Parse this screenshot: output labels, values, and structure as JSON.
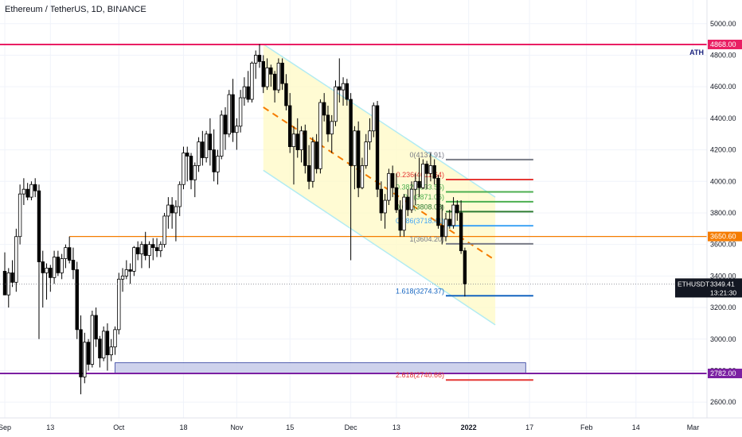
{
  "header": {
    "title": "Ethereum / TetherUS, 1D, BINANCE"
  },
  "colors": {
    "up": "#ffffff",
    "down": "#000000",
    "wick": "#000000",
    "ath": "#e91e63",
    "support": "#7b1fa2",
    "orange": "#f57c00",
    "channel_fill": "#fff9c4",
    "channel_line": "#b2ebf2",
    "zone": "#c5cae9",
    "zone_border": "#303f9f",
    "fib_0": "#787b86",
    "fib_236": "#e53935",
    "fib_382": "#4caf50",
    "fib_5": "#4caf50",
    "fib_618": "#2e7d32",
    "fib_786": "#42a5f5",
    "fib_1": "#787b86",
    "fib_1618": "#1565c0",
    "fib_2618": "#e53935"
  },
  "chart_data": {
    "type": "candlestick",
    "symbol": "ETHUSDT",
    "ylim": [
      2500,
      5150
    ],
    "y_ticks": [
      "2600.00",
      "2800.00",
      "3000.00",
      "3200.00",
      "3400.00",
      "3600.00",
      "3800.00",
      "4000.00",
      "4200.00",
      "4400.00",
      "4600.00",
      "4800.00",
      "5000.00"
    ],
    "x_ticks": [
      {
        "label": "Sep",
        "day": 0
      },
      {
        "label": "13",
        "day": 12
      },
      {
        "label": "Oct",
        "day": 30
      },
      {
        "label": "18",
        "day": 47
      },
      {
        "label": "Nov",
        "day": 61
      },
      {
        "label": "15",
        "day": 75
      },
      {
        "label": "Dec",
        "day": 91
      },
      {
        "label": "13",
        "day": 103
      },
      {
        "label": "2022",
        "day": 122
      },
      {
        "label": "17",
        "day": 138
      },
      {
        "label": "Feb",
        "day": 153
      },
      {
        "label": "14",
        "day": 166
      },
      {
        "label": "Mar",
        "day": 181
      }
    ],
    "x_range_days": [
      0,
      183
    ],
    "candles": [
      [
        3430,
        3550,
        3300,
        3280
      ],
      [
        3280,
        3450,
        3200,
        3420
      ],
      [
        3420,
        3500,
        3330,
        3360
      ],
      [
        3360,
        3700,
        3300,
        3650
      ],
      [
        3650,
        3980,
        3600,
        3920
      ],
      [
        3920,
        4020,
        3850,
        3950
      ],
      [
        3950,
        3990,
        3880,
        3900
      ],
      [
        3900,
        4000,
        3880,
        3980
      ],
      [
        3980,
        4020,
        3900,
        3940
      ],
      [
        3940,
        3980,
        3000,
        3490
      ],
      [
        3490,
        3560,
        3200,
        3420
      ],
      [
        3420,
        3480,
        3250,
        3450
      ],
      [
        3450,
        3470,
        3300,
        3390
      ],
      [
        3390,
        3560,
        3350,
        3520
      ],
      [
        3520,
        3560,
        3400,
        3420
      ],
      [
        3420,
        3540,
        3380,
        3510
      ],
      [
        3510,
        3600,
        3450,
        3580
      ],
      [
        3580,
        3650,
        3480,
        3500
      ],
      [
        3500,
        3580,
        3380,
        3440
      ],
      [
        3440,
        3490,
        3000,
        3060
      ],
      [
        3060,
        3150,
        2650,
        2760
      ],
      [
        2760,
        3040,
        2720,
        2980
      ],
      [
        2980,
        3000,
        2800,
        2840
      ],
      [
        2840,
        3180,
        2820,
        3150
      ],
      [
        3150,
        3200,
        2950,
        3000
      ],
      [
        3000,
        3020,
        2820,
        2880
      ],
      [
        2880,
        3080,
        2860,
        3050
      ],
      [
        3050,
        3100,
        2800,
        2900
      ],
      [
        2900,
        3000,
        2860,
        2950
      ],
      [
        2950,
        3080,
        2900,
        3060
      ],
      [
        3060,
        3420,
        3030,
        3380
      ],
      [
        3380,
        3450,
        3300,
        3400
      ],
      [
        3400,
        3500,
        3380,
        3440
      ],
      [
        3440,
        3480,
        3350,
        3430
      ],
      [
        3430,
        3590,
        3400,
        3580
      ],
      [
        3580,
        3620,
        3500,
        3540
      ],
      [
        3540,
        3620,
        3450,
        3600
      ],
      [
        3600,
        3680,
        3500,
        3530
      ],
      [
        3530,
        3620,
        3450,
        3600
      ],
      [
        3600,
        3640,
        3500,
        3580
      ],
      [
        3580,
        3640,
        3520,
        3560
      ],
      [
        3560,
        3620,
        3520,
        3600
      ],
      [
        3600,
        3800,
        3580,
        3780
      ],
      [
        3780,
        3900,
        3700,
        3850
      ],
      [
        3850,
        3900,
        3700,
        3800
      ],
      [
        3800,
        3880,
        3620,
        3840
      ],
      [
        3840,
        4000,
        3780,
        3980
      ],
      [
        3980,
        4220,
        3950,
        4180
      ],
      [
        4180,
        4220,
        4000,
        4160
      ],
      [
        4160,
        4180,
        3950,
        4010
      ],
      [
        4010,
        4120,
        3900,
        4100
      ],
      [
        4100,
        4280,
        4060,
        4250
      ],
      [
        4250,
        4320,
        4100,
        4150
      ],
      [
        4150,
        4320,
        4120,
        4300
      ],
      [
        4300,
        4400,
        4100,
        4200
      ],
      [
        4200,
        4330,
        4000,
        4060
      ],
      [
        4060,
        4200,
        3980,
        4160
      ],
      [
        4160,
        4450,
        4140,
        4420
      ],
      [
        4420,
        4470,
        4200,
        4300
      ],
      [
        4300,
        4580,
        4280,
        4550
      ],
      [
        4550,
        4650,
        4250,
        4310
      ],
      [
        4310,
        4400,
        4200,
        4350
      ],
      [
        4350,
        4580,
        4310,
        4530
      ],
      [
        4530,
        4660,
        4480,
        4600
      ],
      [
        4600,
        4700,
        4500,
        4520
      ],
      [
        4520,
        4760,
        4500,
        4750
      ],
      [
        4750,
        4830,
        4650,
        4800
      ],
      [
        4800,
        4870,
        4720,
        4760
      ],
      [
        4760,
        4800,
        4560,
        4600
      ],
      [
        4600,
        4780,
        4580,
        4720
      ],
      [
        4720,
        4740,
        4600,
        4680
      ],
      [
        4680,
        4700,
        4500,
        4580
      ],
      [
        4580,
        4780,
        4560,
        4750
      ],
      [
        4750,
        4780,
        4580,
        4620
      ],
      [
        4620,
        4680,
        4450,
        4480
      ],
      [
        4480,
        4560,
        4180,
        4220
      ],
      [
        4220,
        4350,
        3980,
        4300
      ],
      [
        4300,
        4400,
        4150,
        4200
      ],
      [
        4200,
        4350,
        4120,
        4320
      ],
      [
        4320,
        4360,
        4050,
        4100
      ],
      [
        4100,
        4230,
        3950,
        4000
      ],
      [
        4000,
        4280,
        3960,
        4250
      ],
      [
        4250,
        4300,
        4050,
        4080
      ],
      [
        4080,
        4520,
        4050,
        4500
      ],
      [
        4500,
        4560,
        4380,
        4420
      ],
      [
        4420,
        4480,
        4250,
        4300
      ],
      [
        4300,
        4420,
        4180,
        4380
      ],
      [
        4380,
        4640,
        4350,
        4600
      ],
      [
        4600,
        4780,
        4500,
        4580
      ],
      [
        4580,
        4660,
        4480,
        4620
      ],
      [
        4620,
        4650,
        4480,
        4520
      ],
      [
        4520,
        4560,
        3500,
        4100
      ],
      [
        4100,
        4350,
        3950,
        4320
      ],
      [
        4320,
        4380,
        3900,
        3960
      ],
      [
        3960,
        4150,
        3950,
        4100
      ],
      [
        4100,
        4300,
        4080,
        4250
      ],
      [
        4250,
        4400,
        4200,
        4320
      ],
      [
        4320,
        4500,
        4280,
        4480
      ],
      [
        4480,
        4510,
        3900,
        3950
      ],
      [
        3950,
        4000,
        3750,
        3800
      ],
      [
        3800,
        3920,
        3700,
        3880
      ],
      [
        3880,
        4080,
        3850,
        4050
      ],
      [
        4050,
        4100,
        3900,
        3960
      ],
      [
        3960,
        4050,
        3800,
        3820
      ],
      [
        3820,
        3880,
        3650,
        3690
      ],
      [
        3690,
        3920,
        3650,
        3900
      ],
      [
        3900,
        3950,
        3780,
        3820
      ],
      [
        3820,
        4000,
        3800,
        3950
      ],
      [
        3950,
        4050,
        3850,
        4000
      ],
      [
        4000,
        4150,
        3900,
        3960
      ],
      [
        3960,
        4140,
        3950,
        4110
      ],
      [
        4110,
        4130,
        3950,
        4050
      ],
      [
        4050,
        4180,
        4000,
        4100
      ],
      [
        4100,
        4140,
        3980,
        4020
      ],
      [
        4020,
        4040,
        3700,
        3720
      ],
      [
        3720,
        3850,
        3600,
        3650
      ],
      [
        3650,
        3800,
        3620,
        3760
      ],
      [
        3760,
        3820,
        3700,
        3720
      ],
      [
        3720,
        3900,
        3700,
        3850
      ],
      [
        3850,
        3880,
        3750,
        3800
      ],
      [
        3800,
        3880,
        3540,
        3560
      ],
      [
        3560,
        3580,
        3270,
        3349
      ]
    ],
    "last_price": "3349.41",
    "countdown": "13:21:30",
    "levels": [
      {
        "name": "ath",
        "value": 4868,
        "label": "4868.00",
        "note": "ATH"
      },
      {
        "name": "support",
        "value": 2782,
        "label": "2782.00"
      },
      {
        "name": "orange",
        "value": 3650.6,
        "label": "3650.60"
      }
    ],
    "fib": [
      {
        "key": "fib_0",
        "label": "0(4137.91)",
        "value": 4137.91
      },
      {
        "key": "fib_236",
        "label": "0.236(4011.64)",
        "value": 4011.64
      },
      {
        "key": "fib_382",
        "label": "0.382(3933.55)",
        "value": 3933.55
      },
      {
        "key": "fib_5",
        "label": "0.5(3871.06)",
        "value": 3871.06
      },
      {
        "key": "fib_618",
        "label": "0.618(3808.08)",
        "value": 3808.08
      },
      {
        "key": "fib_786",
        "label": "0.786(3718.41)",
        "value": 3718.41
      },
      {
        "key": "fib_1",
        "label": "1(3604.20)",
        "value": 3604.2
      },
      {
        "key": "fib_1618",
        "label": "1.618(3274.37)",
        "value": 3274.37
      },
      {
        "key": "fib_2618",
        "label": "2.618(2740.66)",
        "value": 2740.66
      }
    ],
    "channel": {
      "upper": [
        [
          68,
          4870
        ],
        [
          129,
          3900
        ]
      ],
      "lower": [
        [
          68,
          4070
        ],
        [
          129,
          3090
        ]
      ],
      "mid": [
        [
          68,
          4470
        ],
        [
          129,
          3500
        ]
      ]
    },
    "zone": {
      "x0": 29,
      "x1": 137,
      "y0": 2782,
      "y1": 2850
    }
  }
}
